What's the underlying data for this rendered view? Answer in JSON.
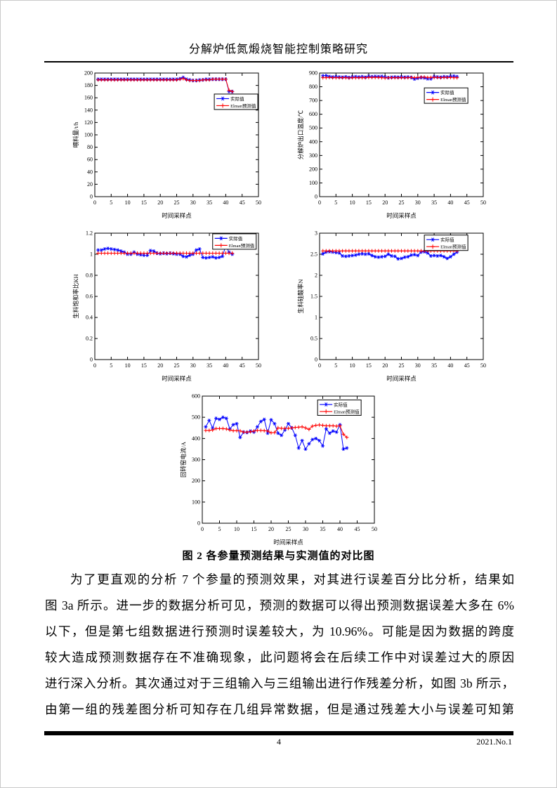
{
  "header": {
    "title": "分解炉低氮煅烧智能控制策略研究"
  },
  "figure": {
    "caption": "图 2 各参量预测结果与实测值的对比图"
  },
  "paragraph": {
    "lines": [
      "为了更直观的分析 7 个参量的预测效果，对其进行误差百分比分析，结果如",
      "图 3a 所示。进一步的数据分析可见，预测的数据可以得出预测数据误差大多在 6%",
      "以下，但是第七组数据进行预测时误差较大，为 10.96%。可能是因为数据的跨度",
      "较大造成预测数据存在不准确现象，此问题将会在后续工作中对误差过大的原因",
      "进行深入分析。其次通过对于三组输入与三组输出进行作残差分析，如图 3b 所示，",
      "由第一组的残差图分析可知存在几组异常数据，但是通过残差大小与误差可知第"
    ]
  },
  "footer": {
    "page_number": "4",
    "issue_label": "2021.No.1"
  },
  "colors": {
    "actual": "#0000FF",
    "predicted": "#FF0000",
    "axis": "#000000"
  },
  "chart_data": [
    {
      "type": "line",
      "xlabel": "时间采样点",
      "ylabel": "喂料量/t/h",
      "xlim": [
        0,
        50
      ],
      "ylim": [
        0,
        200
      ],
      "xticks": [
        0,
        5,
        10,
        15,
        20,
        25,
        30,
        35,
        40,
        45,
        50
      ],
      "yticks": [
        0,
        20,
        40,
        60,
        80,
        100,
        120,
        140,
        160,
        180,
        200
      ],
      "legend_pos": {
        "x": 0.73,
        "y": 0.17
      },
      "series": [
        {
          "name": "实际值",
          "color": "#0000FF",
          "marker": "star",
          "values": [
            190,
            190,
            190,
            190,
            190,
            190,
            190,
            190,
            190,
            190,
            190,
            190,
            190,
            190,
            190,
            190,
            190,
            190,
            190,
            190,
            190,
            190,
            190,
            190,
            190,
            191,
            193,
            190,
            189,
            188,
            188,
            189,
            189,
            190,
            190,
            190,
            190,
            190,
            190,
            190,
            170,
            170
          ]
        },
        {
          "name": "Elman预测值",
          "color": "#FF0000",
          "marker": "plus",
          "values": [
            189,
            189,
            189,
            189,
            189,
            189,
            189,
            189,
            189,
            189,
            189,
            189,
            189,
            189,
            189,
            189,
            189,
            189,
            189,
            189,
            189,
            189,
            189,
            189,
            189,
            190,
            191,
            189,
            188,
            188,
            188,
            188,
            189,
            189,
            189,
            190,
            190,
            190,
            190,
            190,
            172,
            170
          ]
        }
      ]
    },
    {
      "type": "line",
      "xlabel": "时间采样点",
      "ylabel": "分解炉出口温度/℃",
      "xlim": [
        0,
        50
      ],
      "ylim": [
        0,
        900
      ],
      "xticks": [
        0,
        5,
        10,
        15,
        20,
        25,
        30,
        35,
        40,
        45,
        50
      ],
      "yticks": [
        0,
        100,
        200,
        300,
        400,
        500,
        600,
        700,
        800,
        900
      ],
      "legend_pos": {
        "x": 0.64,
        "y": 0.12
      },
      "series": [
        {
          "name": "实际值",
          "color": "#0000FF",
          "marker": "star",
          "values": [
            880,
            882,
            875,
            872,
            874,
            872,
            870,
            873,
            868,
            872,
            874,
            872,
            874,
            870,
            876,
            874,
            876,
            875,
            876,
            872,
            866,
            870,
            872,
            870,
            872,
            870,
            872,
            868,
            856,
            862,
            866,
            864,
            858,
            858,
            874,
            872,
            870,
            874,
            872,
            876,
            878,
            874
          ]
        },
        {
          "name": "Elman预测值",
          "color": "#FF0000",
          "marker": "plus",
          "values": [
            866,
            866,
            868,
            866,
            866,
            866,
            866,
            866,
            864,
            866,
            866,
            866,
            866,
            866,
            868,
            868,
            868,
            868,
            866,
            864,
            866,
            866,
            866,
            866,
            866,
            866,
            866,
            868,
            866,
            868,
            870,
            870,
            868,
            868,
            868,
            868,
            866,
            868,
            868,
            868,
            866,
            866
          ]
        }
      ]
    },
    {
      "type": "line",
      "xlabel": "时间采样点",
      "ylabel": "生料饱和率比KH",
      "xlim": [
        0,
        50
      ],
      "ylim": [
        0,
        1.2
      ],
      "xticks": [
        0,
        5,
        10,
        15,
        20,
        25,
        30,
        35,
        40,
        45,
        50
      ],
      "yticks": [
        0,
        0.2,
        0.4,
        0.6,
        0.8,
        1,
        1.2
      ],
      "legend_pos": {
        "x": 0.72,
        "y": 0.005
      },
      "series": [
        {
          "name": "实际值",
          "color": "#0000FF",
          "marker": "star",
          "values": [
            1.04,
            1.04,
            1.05,
            1.055,
            1.05,
            1.045,
            1.04,
            1.03,
            1.02,
            1.0,
            1.0,
            1.02,
            1.0,
            0.995,
            0.99,
            0.99,
            1.035,
            1.03,
            1.01,
            1.005,
            1.01,
            1.005,
            1.01,
            1.005,
            1.0,
            1.0,
            0.98,
            0.975,
            0.99,
            1.0,
            1.04,
            1.05,
            0.97,
            0.965,
            0.97,
            0.975,
            0.965,
            0.97,
            0.98,
            1.08,
            1.02,
            1.0
          ]
        },
        {
          "name": "Elman预测值",
          "color": "#FF0000",
          "marker": "plus",
          "values": [
            1.01,
            1.01,
            1.01,
            1.01,
            1.01,
            1.01,
            1.01,
            1.01,
            1.01,
            1.01,
            1.01,
            1.01,
            1.01,
            1.01,
            1.01,
            1.01,
            1.01,
            1.01,
            1.01,
            1.01,
            1.01,
            1.01,
            1.01,
            1.01,
            1.01,
            1.01,
            1.01,
            1.01,
            1.01,
            1.01,
            1.01,
            1.01,
            1.01,
            1.01,
            1.01,
            1.01,
            1.01,
            1.01,
            1.01,
            1.01,
            1.01,
            1.01
          ]
        }
      ]
    },
    {
      "type": "line",
      "xlabel": "时间采样点",
      "ylabel": "生料硅酸率N",
      "xlim": [
        0,
        50
      ],
      "ylim": [
        0,
        3
      ],
      "xticks": [
        0,
        5,
        10,
        15,
        20,
        25,
        30,
        35,
        40,
        45,
        50
      ],
      "yticks": [
        0,
        0.5,
        1,
        1.5,
        2,
        2.5,
        3
      ],
      "legend_pos": {
        "x": 0.64,
        "y": 0.015
      },
      "series": [
        {
          "name": "实际值",
          "color": "#0000FF",
          "marker": "star",
          "values": [
            2.51,
            2.55,
            2.56,
            2.55,
            2.54,
            2.53,
            2.46,
            2.45,
            2.46,
            2.47,
            2.48,
            2.5,
            2.51,
            2.5,
            2.51,
            2.47,
            2.44,
            2.43,
            2.44,
            2.45,
            2.5,
            2.46,
            2.45,
            2.39,
            2.4,
            2.43,
            2.44,
            2.48,
            2.49,
            2.47,
            2.55,
            2.56,
            2.53,
            2.46,
            2.47,
            2.46,
            2.47,
            2.44,
            2.4,
            2.44,
            2.5,
            2.55
          ]
        },
        {
          "name": "Elman预测值",
          "color": "#FF0000",
          "marker": "plus",
          "values": [
            2.58,
            2.58,
            2.58,
            2.58,
            2.58,
            2.58,
            2.58,
            2.58,
            2.58,
            2.58,
            2.58,
            2.58,
            2.58,
            2.58,
            2.58,
            2.58,
            2.58,
            2.58,
            2.58,
            2.58,
            2.58,
            2.58,
            2.58,
            2.58,
            2.58,
            2.58,
            2.58,
            2.58,
            2.58,
            2.58,
            2.58,
            2.58,
            2.58,
            2.58,
            2.58,
            2.58,
            2.58,
            2.58,
            2.58,
            2.58,
            2.58,
            2.58
          ]
        }
      ]
    },
    {
      "type": "line",
      "xlabel": "时间采样点",
      "ylabel": "回转窑电流/A",
      "xlim": [
        0,
        50
      ],
      "ylim": [
        0,
        600
      ],
      "xticks": [
        0,
        5,
        10,
        15,
        20,
        25,
        30,
        35,
        40,
        45,
        50
      ],
      "yticks": [
        0,
        100,
        200,
        300,
        400,
        500,
        600
      ],
      "legend_pos": {
        "x": 0.67,
        "y": 0.03
      },
      "series": [
        {
          "name": "实际值",
          "color": "#0000FF",
          "marker": "star",
          "values": [
            455,
            485,
            450,
            495,
            490,
            500,
            495,
            445,
            465,
            470,
            405,
            430,
            428,
            435,
            430,
            455,
            480,
            490,
            425,
            488,
            470,
            425,
            415,
            440,
            470,
            450,
            415,
            355,
            390,
            350,
            375,
            395,
            400,
            390,
            365,
            445,
            425,
            435,
            430,
            465,
            350,
            355
          ]
        },
        {
          "name": "Elman预测值",
          "color": "#FF0000",
          "marker": "plus",
          "values": [
            438,
            438,
            440,
            447,
            447,
            447,
            445,
            440,
            437,
            437,
            436,
            430,
            430,
            432,
            435,
            438,
            438,
            437,
            435,
            427,
            428,
            450,
            448,
            448,
            448,
            450,
            452,
            453,
            455,
            450,
            443,
            458,
            462,
            464,
            462,
            460,
            460,
            460,
            458,
            460,
            420,
            405
          ]
        }
      ]
    }
  ]
}
